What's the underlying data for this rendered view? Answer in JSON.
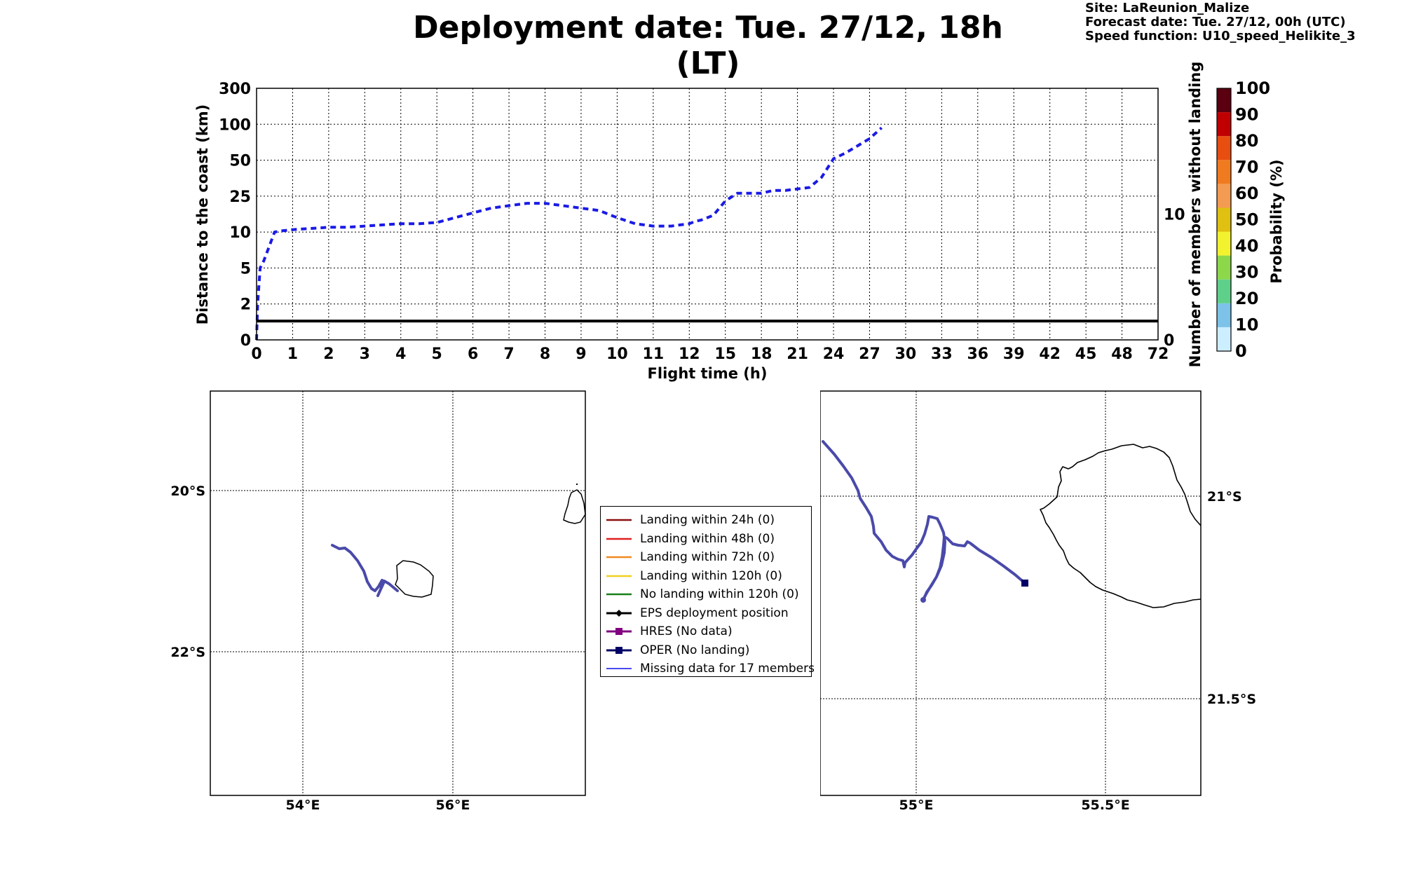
{
  "header": {
    "title": "Deployment date: Tue. 27/12, 18h (LT)",
    "site": "Site: LaReunion_Malize",
    "forecast": "Forecast date: Tue. 27/12, 00h (UTC)",
    "speed": "Speed function: U10_speed_Helikite_3"
  },
  "chart_data": [
    {
      "type": "line",
      "xlabel": "Flight time (h)",
      "ylabel": "Distance to the coast (km)",
      "y2label": "Number of members without landing",
      "x_ticks": [
        "0",
        "1",
        "2",
        "3",
        "4",
        "5",
        "6",
        "7",
        "8",
        "9",
        "10",
        "11",
        "12",
        "15",
        "18",
        "21",
        "24",
        "27",
        "30",
        "33",
        "36",
        "39",
        "42",
        "45",
        "48",
        "72"
      ],
      "y_ticks": [
        "0",
        "2",
        "5",
        "10",
        "25",
        "50",
        "100",
        "300"
      ],
      "y2_ticks": [
        "0",
        "10"
      ],
      "y2lim": [
        0,
        20
      ],
      "grid": true,
      "series": [
        {
          "color": "#1a1ae6",
          "style": "dashed",
          "x": [
            0,
            0.03,
            0.1,
            0.2,
            0.35,
            0.5,
            0.7,
            1,
            1.5,
            2,
            2.5,
            3,
            3.5,
            4,
            4.5,
            5,
            5.5,
            6,
            6.5,
            7,
            7.5,
            8,
            8.5,
            9,
            9.5,
            10,
            10.5,
            11,
            11.5,
            12,
            12.5,
            13,
            14,
            15,
            16,
            17,
            18,
            19,
            20,
            21,
            22,
            23,
            24,
            25,
            26,
            27,
            28
          ],
          "y": [
            0,
            2,
            5,
            6,
            8,
            10,
            10.5,
            11,
            11.5,
            12,
            12,
            12.5,
            13,
            13.5,
            13.5,
            14,
            16,
            18,
            20,
            21,
            22,
            22,
            21,
            20,
            19,
            16,
            13.5,
            12.5,
            12.5,
            13.5,
            14.5,
            15,
            17,
            23,
            27,
            27,
            27,
            29,
            29,
            30,
            31,
            38,
            52,
            60,
            70,
            80,
            95
          ]
        },
        {
          "name": "members-without-landing",
          "color": "#000000",
          "x": [
            0,
            72
          ],
          "y2": [
            1.5,
            1.5
          ]
        }
      ]
    },
    {
      "type": "heatmap",
      "label": "Probability (%)",
      "ticks": [
        "0",
        "10",
        "20",
        "30",
        "40",
        "50",
        "60",
        "70",
        "80",
        "90",
        "100"
      ],
      "colors": [
        "#cceeff",
        "#7dc2e8",
        "#5fd08a",
        "#8dd84a",
        "#f2f22e",
        "#e0c010",
        "#f39b52",
        "#f07a20",
        "#e84e10",
        "#c00000",
        "#5a0010"
      ]
    }
  ],
  "map_left": {
    "lat_labels": [
      "20°S",
      "22°S"
    ],
    "lon_labels": [
      "54°E",
      "56°E"
    ],
    "trajectory_color": "#4a4aaa"
  },
  "map_right": {
    "lat_labels": [
      "21°S",
      "21.5°S"
    ],
    "lon_labels": [
      "55°E",
      "55.5°E"
    ],
    "trajectory_color": "#4a4aaa",
    "oper_color": "#000066"
  },
  "legend": {
    "items": [
      {
        "label": "Landing within 24h (0)",
        "color": "#8b1010",
        "marker": "none"
      },
      {
        "label": "Landing within 48h (0)",
        "color": "#e02020",
        "marker": "none"
      },
      {
        "label": "Landing within 72h (0)",
        "color": "#f08a20",
        "marker": "none"
      },
      {
        "label": "Landing within 120h (0)",
        "color": "#f0d020",
        "marker": "none"
      },
      {
        "label": "No landing within 120h (0)",
        "color": "#188018",
        "marker": "none"
      },
      {
        "label": "EPS deployment position",
        "color": "#000000",
        "marker": "diamond"
      },
      {
        "label": "HRES (No data)",
        "color": "#800080",
        "marker": "square"
      },
      {
        "label": "OPER (No landing)",
        "color": "#000066",
        "marker": "square"
      },
      {
        "label": "Missing data for 17 members",
        "color": "#4a4aee",
        "marker": "none"
      }
    ]
  }
}
